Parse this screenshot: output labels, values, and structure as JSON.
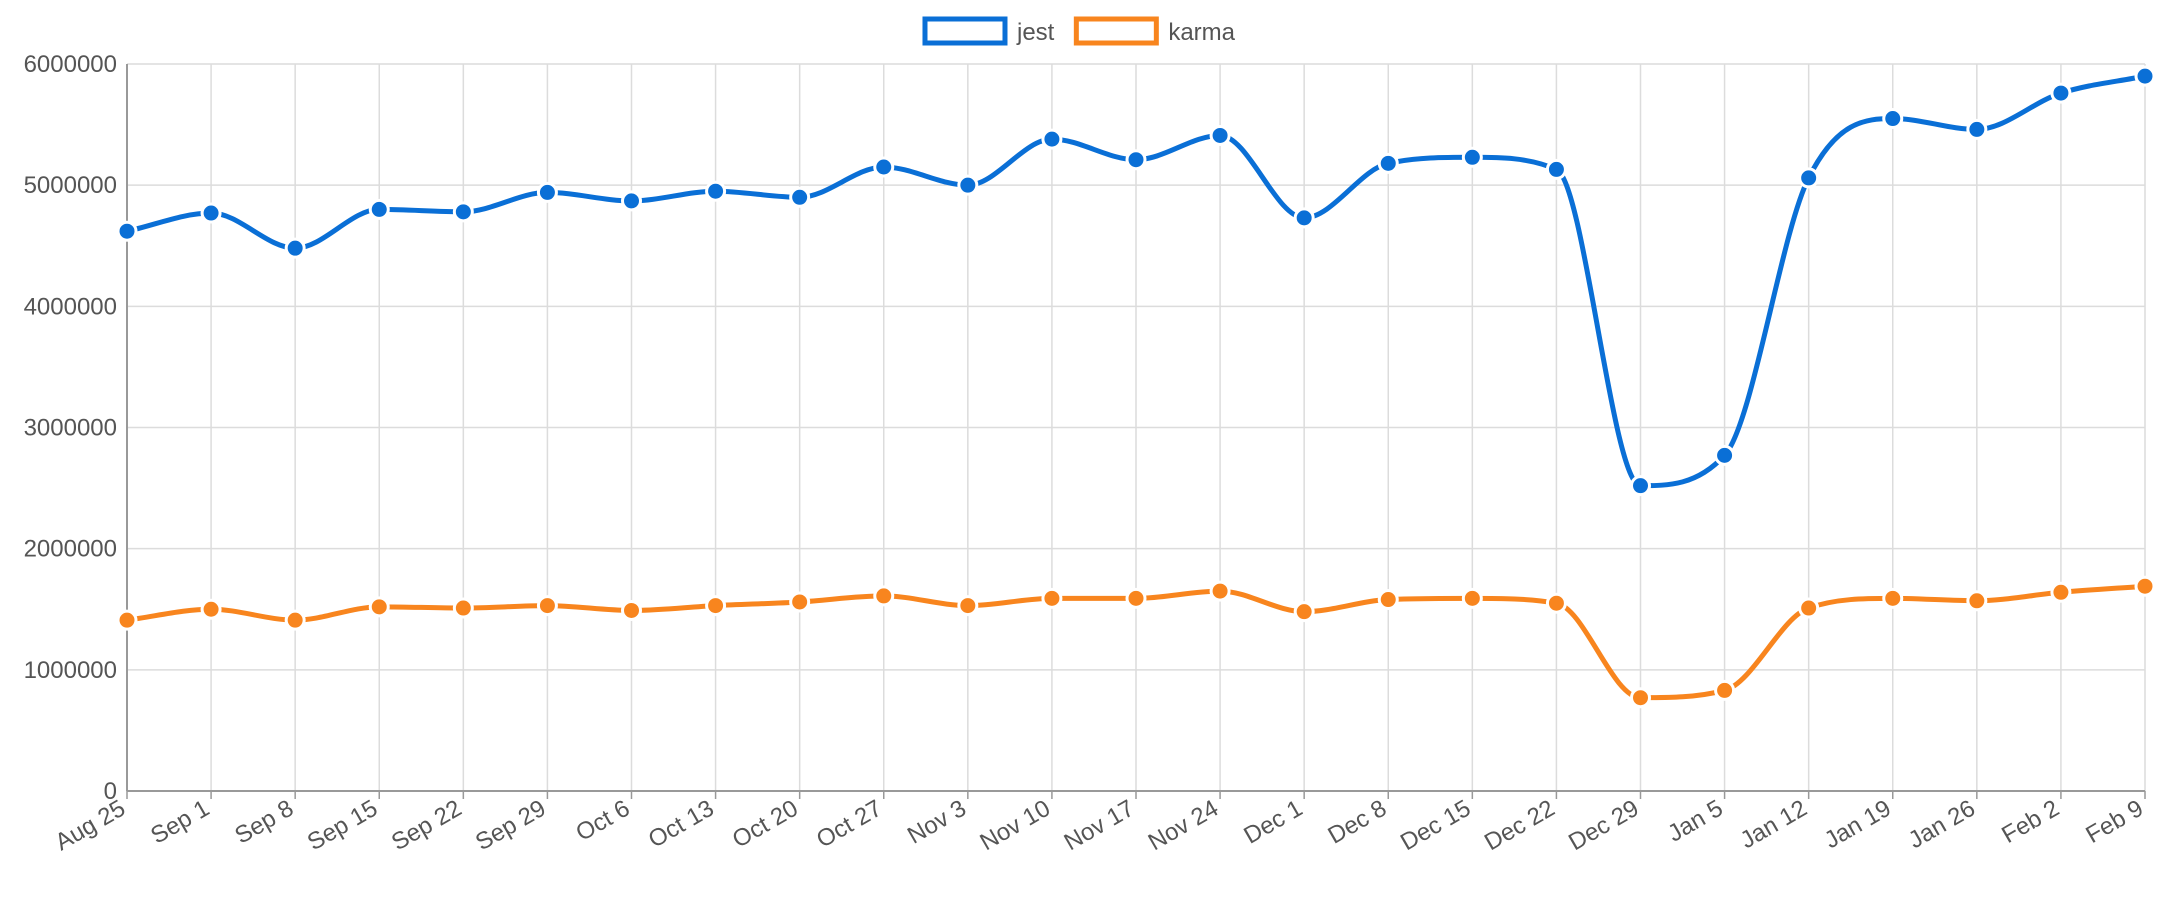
{
  "chart_data": {
    "type": "line",
    "categories": [
      "Aug 25",
      "Sep 1",
      "Sep 8",
      "Sep 15",
      "Sep 22",
      "Sep 29",
      "Oct 6",
      "Oct 13",
      "Oct 20",
      "Oct 27",
      "Nov 3",
      "Nov 10",
      "Nov 17",
      "Nov 24",
      "Dec 1",
      "Dec 8",
      "Dec 15",
      "Dec 22",
      "Dec 29",
      "Jan 5",
      "Jan 12",
      "Jan 19",
      "Jan 26",
      "Feb 2",
      "Feb 9"
    ],
    "series": [
      {
        "name": "jest",
        "color": "#0a6fd6",
        "values": [
          4620000,
          4770000,
          4480000,
          4800000,
          4780000,
          4940000,
          4870000,
          4950000,
          4900000,
          5150000,
          5000000,
          5380000,
          5210000,
          5410000,
          4730000,
          5180000,
          5230000,
          5130000,
          2520000,
          2770000,
          5060000,
          5550000,
          5460000,
          5760000,
          5900000
        ]
      },
      {
        "name": "karma",
        "color": "#f8851e",
        "values": [
          1410000,
          1500000,
          1410000,
          1520000,
          1510000,
          1530000,
          1490000,
          1530000,
          1560000,
          1610000,
          1530000,
          1590000,
          1590000,
          1650000,
          1480000,
          1580000,
          1590000,
          1550000,
          770000,
          830000,
          1510000,
          1590000,
          1570000,
          1640000,
          1690000
        ]
      }
    ],
    "ylim": [
      0,
      6000000
    ],
    "yticks": [
      "0",
      "1000000",
      "2000000",
      "3000000",
      "4000000",
      "5000000",
      "6000000"
    ],
    "grid": true,
    "legend_position": "top-center"
  }
}
